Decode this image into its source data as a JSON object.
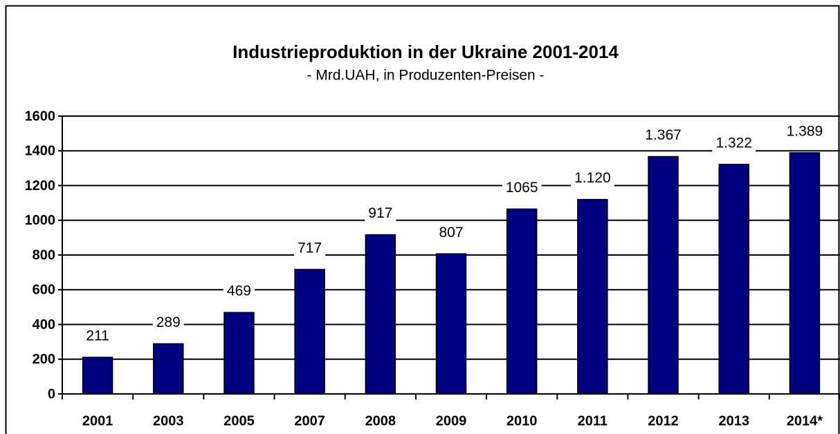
{
  "chart_data": {
    "type": "bar",
    "title": "Industrieproduktion in der Ukraine 2001-2014",
    "subtitle": "- Mrd.UAH, in Produzenten-Preisen -",
    "categories": [
      "2001",
      "2003",
      "2005",
      "2007",
      "2008",
      "2009",
      "2010",
      "2011",
      "2012",
      "2013",
      "2014*"
    ],
    "values": [
      211,
      289,
      469,
      717,
      917,
      807,
      1065,
      1120,
      1367,
      1322,
      1389
    ],
    "value_labels": [
      "211",
      "289",
      "469",
      "717",
      "917",
      "807",
      "1065",
      "1.120",
      "1.367",
      "1.322",
      "1.389"
    ],
    "color": "#000080",
    "ylim": [
      0,
      1600
    ],
    "yticks": [
      0,
      200,
      400,
      600,
      800,
      1000,
      1200,
      1400,
      1600
    ],
    "grid": true
  }
}
